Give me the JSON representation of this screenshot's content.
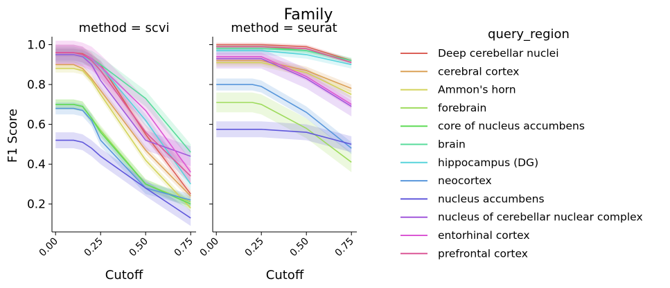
{
  "chart_data": {
    "type": "line",
    "suptitle": "Family",
    "ylabel": "F1 Score",
    "xlabel": "Cutoff",
    "xlim": [
      -0.02,
      0.78
    ],
    "ylim": [
      0.06,
      1.04
    ],
    "xticks": [
      0,
      0.25,
      0.5,
      0.75
    ],
    "xtick_labels": [
      "0.00",
      "0.25",
      "0.50",
      "0.75"
    ],
    "yticks": [
      0.2,
      0.4,
      0.6,
      0.8,
      1.0
    ],
    "ytick_labels": [
      "0.2",
      "0.4",
      "0.6",
      "0.8",
      "1.0"
    ],
    "x": [
      0,
      0.05,
      0.1,
      0.15,
      0.2,
      0.25,
      0.5,
      0.75
    ],
    "legend": {
      "title": "query_region",
      "placement": "right"
    },
    "panels": [
      {
        "title": "method = scvi",
        "series": [
          {
            "name": "Deep cerebellar nuclei",
            "color": "#db5f57",
            "values": [
              0.96,
              0.96,
              0.96,
              0.955,
              0.93,
              0.9,
              0.55,
              0.25
            ],
            "band": 0.02
          },
          {
            "name": "cerebral cortex",
            "color": "#dba157",
            "values": [
              0.9,
              0.9,
              0.9,
              0.88,
              0.83,
              0.77,
              0.47,
              0.24
            ],
            "band": 0.02
          },
          {
            "name": "Ammon's horn",
            "color": "#d3d35a",
            "values": [
              0.88,
              0.88,
              0.88,
              0.87,
              0.82,
              0.75,
              0.42,
              0.18
            ],
            "band": 0.02
          },
          {
            "name": "forebrain",
            "color": "#9edb5c",
            "values": [
              0.7,
              0.7,
              0.7,
              0.69,
              0.63,
              0.57,
              0.3,
              0.21
            ],
            "band": 0.025
          },
          {
            "name": "core of nucleus accumbens",
            "color": "#5fdb57",
            "values": [
              0.7,
              0.7,
              0.7,
              0.69,
              0.63,
              0.56,
              0.3,
              0.2
            ],
            "band": 0.025
          },
          {
            "name": "brain",
            "color": "#57db9b",
            "values": [
              0.95,
              0.95,
              0.95,
              0.94,
              0.93,
              0.9,
              0.73,
              0.46
            ],
            "band": 0.04
          },
          {
            "name": "hippocampus (DG)",
            "color": "#57d4db",
            "values": [
              0.95,
              0.95,
              0.95,
              0.94,
              0.92,
              0.89,
              0.62,
              0.3
            ],
            "band": 0.03
          },
          {
            "name": "neocortex",
            "color": "#5796db",
            "values": [
              0.68,
              0.68,
              0.68,
              0.67,
              0.62,
              0.52,
              0.28,
              0.22
            ],
            "band": 0.03
          },
          {
            "name": "nucleus accumbens",
            "color": "#5f57db",
            "values": [
              0.52,
              0.52,
              0.52,
              0.51,
              0.48,
              0.44,
              0.28,
              0.13
            ],
            "band": 0.04
          },
          {
            "name": "nucleus of cerebellar nuclear complex",
            "color": "#a157db",
            "values": [
              0.95,
              0.95,
              0.95,
              0.94,
              0.9,
              0.82,
              0.52,
              0.44
            ],
            "band": 0.05
          },
          {
            "name": "entorhinal cortex",
            "color": "#db57d4",
            "values": [
              0.96,
              0.96,
              0.96,
              0.95,
              0.93,
              0.89,
              0.67,
              0.36
            ],
            "band": 0.06
          },
          {
            "name": "prefrontal cortex",
            "color": "#db5796",
            "values": [
              0.96,
              0.96,
              0.96,
              0.95,
              0.92,
              0.87,
              0.56,
              0.34
            ],
            "band": 0.04
          }
        ]
      },
      {
        "title": "method = seurat",
        "series": [
          {
            "name": "Deep cerebellar nuclei",
            "color": "#db5f57",
            "values": [
              1.0,
              1.0,
              1.0,
              1.0,
              1.0,
              1.0,
              0.99,
              0.92
            ],
            "band": 0.01
          },
          {
            "name": "cerebral cortex",
            "color": "#dba157",
            "values": [
              0.92,
              0.92,
              0.92,
              0.92,
              0.92,
              0.92,
              0.87,
              0.78
            ],
            "band": 0.02
          },
          {
            "name": "Ammon's horn",
            "color": "#d3d35a",
            "values": [
              0.91,
              0.91,
              0.91,
              0.91,
              0.91,
              0.91,
              0.86,
              0.75
            ],
            "band": 0.02
          },
          {
            "name": "forebrain",
            "color": "#9edb5c",
            "values": [
              0.71,
              0.71,
              0.71,
              0.71,
              0.71,
              0.7,
              0.58,
              0.41
            ],
            "band": 0.05
          },
          {
            "name": "core of nucleus accumbens",
            "color": "#5fdb57",
            "values": [
              0.99,
              0.99,
              0.99,
              0.99,
              0.99,
              0.99,
              0.97,
              0.92
            ],
            "band": 0.01
          },
          {
            "name": "brain",
            "color": "#57db9b",
            "values": [
              0.98,
              0.98,
              0.98,
              0.98,
              0.98,
              0.98,
              0.97,
              0.92
            ],
            "band": 0.015
          },
          {
            "name": "hippocampus (DG)",
            "color": "#57d4db",
            "values": [
              0.97,
              0.97,
              0.97,
              0.97,
              0.97,
              0.97,
              0.95,
              0.9
            ],
            "band": 0.02
          },
          {
            "name": "neocortex",
            "color": "#5796db",
            "values": [
              0.8,
              0.8,
              0.8,
              0.8,
              0.8,
              0.79,
              0.66,
              0.48
            ],
            "band": 0.03
          },
          {
            "name": "nucleus accumbens",
            "color": "#5f57db",
            "values": [
              0.575,
              0.575,
              0.575,
              0.575,
              0.575,
              0.575,
              0.56,
              0.5
            ],
            "band": 0.04
          },
          {
            "name": "nucleus of cerebellar nuclear complex",
            "color": "#a157db",
            "values": [
              0.93,
              0.93,
              0.93,
              0.93,
              0.93,
              0.93,
              0.83,
              0.69
            ],
            "band": 0.05
          },
          {
            "name": "entorhinal cortex",
            "color": "#db57d4",
            "values": [
              0.94,
              0.94,
              0.94,
              0.94,
              0.94,
              0.94,
              0.84,
              0.7
            ],
            "band": 0.02
          },
          {
            "name": "prefrontal cortex",
            "color": "#db5796",
            "values": [
              0.99,
              0.99,
              0.99,
              0.99,
              0.99,
              0.99,
              0.98,
              0.91
            ],
            "band": 0.01
          }
        ]
      }
    ]
  }
}
